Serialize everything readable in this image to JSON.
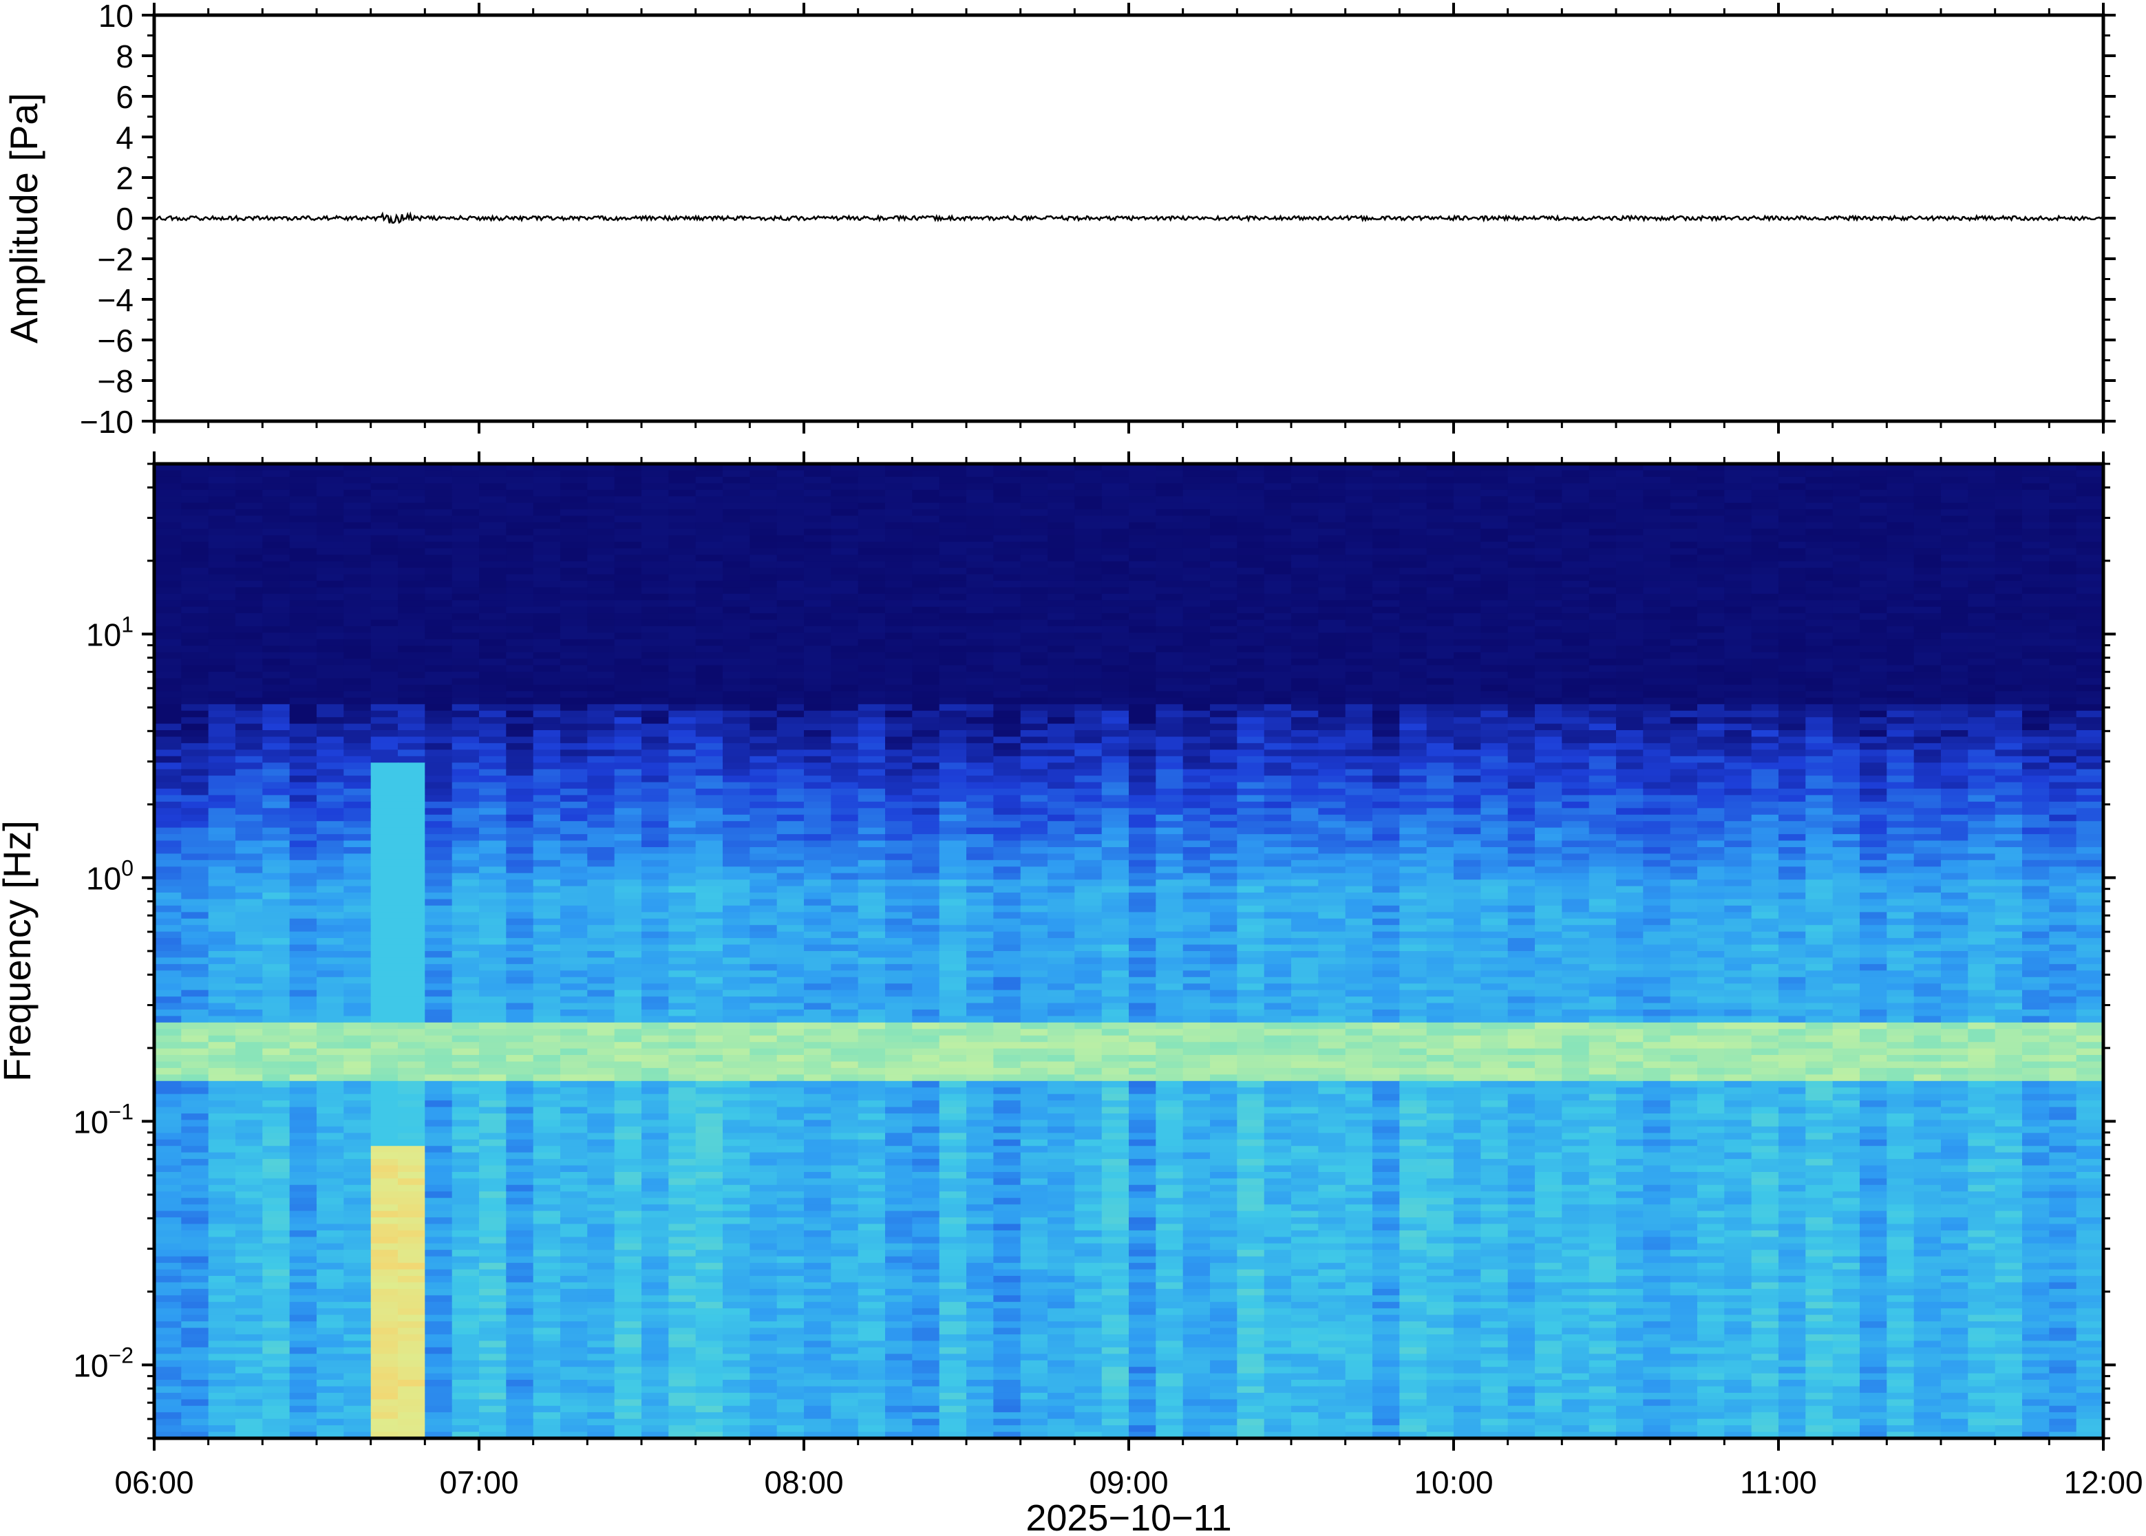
{
  "chart_data": [
    {
      "type": "line",
      "panel": "waveform",
      "xlabel": "",
      "ylabel": "Amplitude [Pa]",
      "ylim": [
        -10,
        10
      ],
      "yticks": [
        10,
        8,
        6,
        4,
        2,
        0,
        -2,
        -4,
        -6,
        -8,
        -10
      ],
      "ytick_labels": [
        "10",
        "8",
        "6",
        "4",
        "2",
        "0",
        "−2",
        "−4",
        "−6",
        "−8",
        "−10"
      ],
      "xlim": [
        "06:00",
        "12:00"
      ],
      "series": [
        {
          "x_start_hours": 6.0,
          "x_end_hours": 12.0,
          "approx_value": 0,
          "approx_peak_abs": 0.1,
          "color": "#000000"
        }
      ],
      "grid": false
    },
    {
      "type": "heatmap",
      "panel": "spectrogram",
      "ylabel": "Frequency [Hz]",
      "yscale": "log",
      "ylim": [
        0.005,
        50
      ],
      "ytick_labels": [
        {
          "value": 10,
          "base": "10",
          "exp": "1"
        },
        {
          "value": 1,
          "base": "10",
          "exp": "0"
        },
        {
          "value": 0.1,
          "base": "10",
          "exp": "−1"
        },
        {
          "value": 0.01,
          "base": "10",
          "exp": "−2"
        }
      ],
      "xtick_labels": [
        "06:00",
        "07:00",
        "08:00",
        "09:00",
        "10:00",
        "11:00",
        "12:00"
      ],
      "xlabel": "2025−10−11",
      "colormap": [
        "#0a0a6e",
        "#1d3fd8",
        "#2f9cf2",
        "#3fc8e8",
        "#78e0c0",
        "#d6f59a",
        "#f5d46e"
      ],
      "features": {
        "dark_above_hz": 5,
        "microbarom_band_hz": [
          0.15,
          0.25
        ],
        "event_time": "06:45",
        "event_freq_range_hz": [
          0.005,
          0.08
        ]
      },
      "grid": false
    }
  ]
}
